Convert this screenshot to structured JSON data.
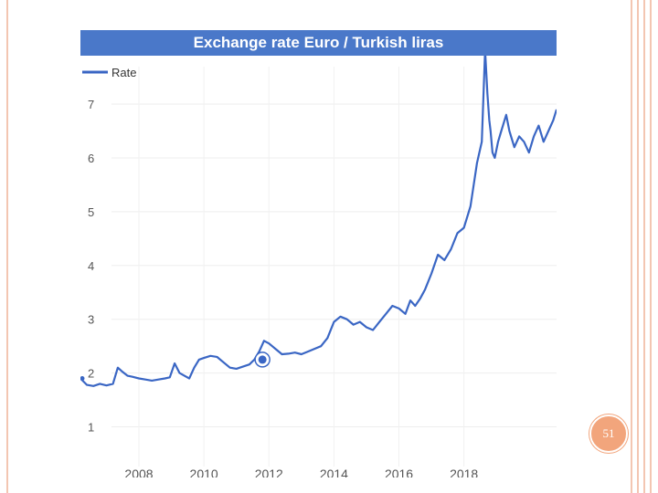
{
  "slide": {
    "page_number": "51"
  },
  "chart_data": {
    "type": "line",
    "title": "Exchange rate Euro / Turkish liras",
    "legend": "Rate",
    "legend_position": "top-left",
    "xlabel": "",
    "ylabel": "",
    "grid": true,
    "xlim": [
      2006.2,
      2020.85
    ],
    "ylim": [
      0.5,
      7.9
    ],
    "y_ticks": [
      1,
      2,
      3,
      4,
      5,
      6,
      7
    ],
    "x_ticks": [
      2008,
      2010,
      2012,
      2014,
      2016,
      2018
    ],
    "series": [
      {
        "name": "Rate",
        "color": "#3a66c4",
        "x": [
          2006.2,
          2006.4,
          2006.6,
          2006.8,
          2007.0,
          2007.2,
          2007.35,
          2007.5,
          2007.65,
          2007.8,
          2008.0,
          2008.2,
          2008.4,
          2008.6,
          2008.8,
          2008.95,
          2009.1,
          2009.25,
          2009.4,
          2009.55,
          2009.7,
          2009.85,
          2010.0,
          2010.2,
          2010.4,
          2010.6,
          2010.8,
          2011.0,
          2011.2,
          2011.4,
          2011.55,
          2011.7,
          2011.85,
          2012.0,
          2012.2,
          2012.4,
          2012.6,
          2012.8,
          2013.0,
          2013.2,
          2013.4,
          2013.6,
          2013.8,
          2014.0,
          2014.2,
          2014.4,
          2014.6,
          2014.8,
          2015.0,
          2015.2,
          2015.4,
          2015.6,
          2015.8,
          2016.0,
          2016.2,
          2016.35,
          2016.5,
          2016.65,
          2016.8,
          2017.0,
          2017.2,
          2017.4,
          2017.6,
          2017.8,
          2018.0,
          2018.2,
          2018.4,
          2018.55,
          2018.65,
          2018.72,
          2018.78,
          2018.82,
          2018.88,
          2018.95,
          2019.05,
          2019.15,
          2019.3,
          2019.4,
          2019.55,
          2019.7,
          2019.85,
          2020.0,
          2020.15,
          2020.3,
          2020.45,
          2020.6,
          2020.75,
          2020.85
        ],
        "values": [
          1.9,
          1.78,
          1.76,
          1.8,
          1.77,
          1.8,
          2.1,
          2.02,
          1.95,
          1.93,
          1.9,
          1.88,
          1.86,
          1.88,
          1.9,
          1.92,
          2.18,
          2.0,
          1.95,
          1.9,
          2.1,
          2.25,
          2.28,
          2.32,
          2.3,
          2.2,
          2.1,
          2.08,
          2.12,
          2.16,
          2.25,
          2.4,
          2.6,
          2.55,
          2.45,
          2.35,
          2.36,
          2.38,
          2.35,
          2.4,
          2.45,
          2.5,
          2.65,
          2.95,
          3.05,
          3.0,
          2.9,
          2.95,
          2.85,
          2.8,
          2.95,
          3.1,
          3.25,
          3.2,
          3.1,
          3.35,
          3.25,
          3.38,
          3.55,
          3.85,
          4.2,
          4.1,
          4.3,
          4.6,
          4.7,
          5.1,
          5.9,
          6.3,
          8.0,
          7.2,
          6.7,
          6.5,
          6.1,
          6.0,
          6.3,
          6.5,
          6.8,
          6.5,
          6.2,
          6.4,
          6.3,
          6.1,
          6.4,
          6.6,
          6.3,
          6.5,
          6.7,
          6.9
        ]
      }
    ],
    "marker": {
      "x": 2011.8,
      "y": 2.25
    }
  }
}
